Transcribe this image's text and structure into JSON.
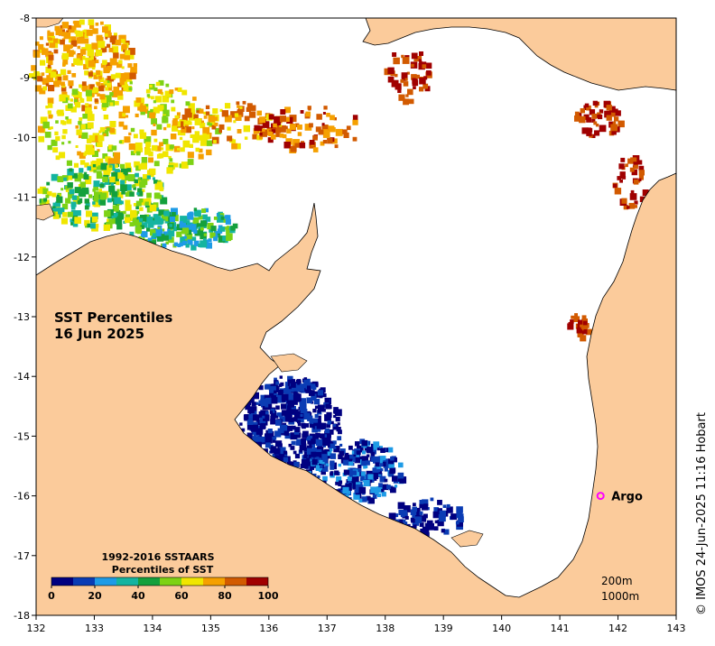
{
  "map": {
    "title_line1": "SST Percentiles",
    "title_line2": "16 Jun 2025",
    "x_ticks": [
      "132",
      "133",
      "134",
      "135",
      "136",
      "137",
      "138",
      "139",
      "140",
      "141",
      "142",
      "143"
    ],
    "y_ticks": [
      "-8",
      "-9",
      "-10",
      "-11",
      "-12",
      "-13",
      "-14",
      "-15",
      "-16",
      "-17",
      "-18"
    ],
    "lon_range": [
      132,
      143
    ],
    "lat_range": [
      -18,
      -8
    ],
    "land_color": "#fbcb9b",
    "ocean_color": "#ffffff"
  },
  "legend": {
    "title_line1": "1992-2016 SSTAARS",
    "title_line2": "Percentiles of SST",
    "tick_labels": [
      "0",
      "20",
      "40",
      "60",
      "80",
      "100"
    ],
    "colors": [
      "#000080",
      "#0a3cb4",
      "#1e9be6",
      "#14b4a0",
      "#14a03c",
      "#7dd214",
      "#f0e600",
      "#f5a000",
      "#d25a00",
      "#a00000"
    ]
  },
  "isobaths": {
    "line1": "200m",
    "line2": "1000m"
  },
  "argo": {
    "label": "Argo",
    "lon": 141.7,
    "lat": -16.0,
    "color": "#ff00ff"
  },
  "credit": {
    "text": "© IMOS 24-Jun-2025 11:16 Hobart"
  }
}
